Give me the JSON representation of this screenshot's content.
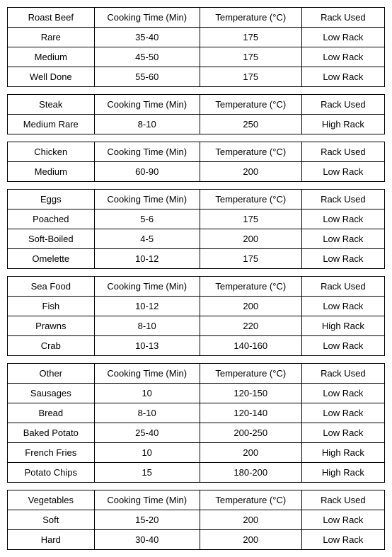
{
  "headers": {
    "time": "Cooking Time (Min)",
    "temp": "Temperature (°C)",
    "rack": "Rack Used"
  },
  "sections": [
    {
      "title": "Roast Beef",
      "rows": [
        {
          "name": "Rare",
          "time": "35-40",
          "temp": "175",
          "rack": "Low Rack"
        },
        {
          "name": "Medium",
          "time": "45-50",
          "temp": "175",
          "rack": "Low Rack"
        },
        {
          "name": "Well Done",
          "time": "55-60",
          "temp": "175",
          "rack": "Low Rack"
        }
      ]
    },
    {
      "title": "Steak",
      "rows": [
        {
          "name": "Medium Rare",
          "time": "8-10",
          "temp": "250",
          "rack": "High Rack"
        }
      ]
    },
    {
      "title": "Chicken",
      "rows": [
        {
          "name": "Medium",
          "time": "60-90",
          "temp": "200",
          "rack": "Low Rack"
        }
      ]
    },
    {
      "title": "Eggs",
      "rows": [
        {
          "name": "Poached",
          "time": "5-6",
          "temp": "175",
          "rack": "Low Rack"
        },
        {
          "name": "Soft-Boiled",
          "time": "4-5",
          "temp": "200",
          "rack": "Low Rack"
        },
        {
          "name": "Omelette",
          "time": "10-12",
          "temp": "175",
          "rack": "Low Rack"
        }
      ]
    },
    {
      "title": "Sea Food",
      "rows": [
        {
          "name": "Fish",
          "time": "10-12",
          "temp": "200",
          "rack": "Low Rack"
        },
        {
          "name": "Prawns",
          "time": "8-10",
          "temp": "220",
          "rack": "High Rack"
        },
        {
          "name": "Crab",
          "time": "10-13",
          "temp": "140-160",
          "rack": "Low Rack"
        }
      ]
    },
    {
      "title": "Other",
      "rows": [
        {
          "name": "Sausages",
          "time": "10",
          "temp": "120-150",
          "rack": "Low Rack"
        },
        {
          "name": "Bread",
          "time": "8-10",
          "temp": "120-140",
          "rack": "Low Rack"
        },
        {
          "name": "Baked Potato",
          "time": "25-40",
          "temp": "200-250",
          "rack": "Low Rack"
        },
        {
          "name": "French Fries",
          "time": "10",
          "temp": "200",
          "rack": "High Rack"
        },
        {
          "name": "Potato Chips",
          "time": "15",
          "temp": "180-200",
          "rack": "High Rack"
        }
      ]
    },
    {
      "title": "Vegetables",
      "rows": [
        {
          "name": "Soft",
          "time": "15-20",
          "temp": "200",
          "rack": "Low Rack"
        },
        {
          "name": "Hard",
          "time": "30-40",
          "temp": "200",
          "rack": "Low Rack"
        }
      ]
    }
  ]
}
